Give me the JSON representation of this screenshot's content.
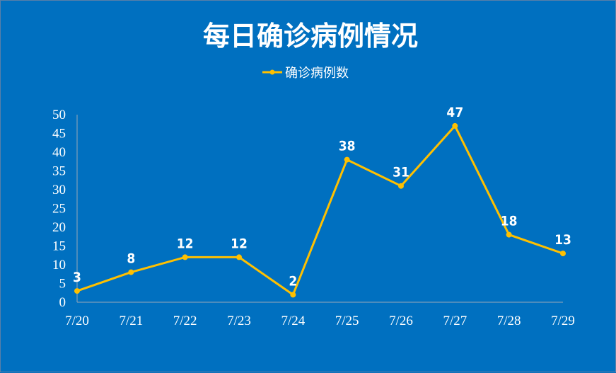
{
  "chart_data": {
    "type": "line",
    "title": "每日确诊病例情况",
    "categories": [
      "7/20",
      "7/21",
      "7/22",
      "7/23",
      "7/24",
      "7/25",
      "7/26",
      "7/27",
      "7/28",
      "7/29"
    ],
    "series": [
      {
        "name": "确诊病例数",
        "values": [
          3,
          8,
          12,
          12,
          2,
          38,
          31,
          47,
          18,
          13
        ],
        "color": "#FFC000"
      }
    ],
    "ylim": [
      0,
      50
    ],
    "yticks": [
      0,
      5,
      10,
      15,
      20,
      25,
      30,
      35,
      40,
      45,
      50
    ],
    "grid": false,
    "legend": "top",
    "data_labels": true,
    "background": "#0070C0"
  }
}
